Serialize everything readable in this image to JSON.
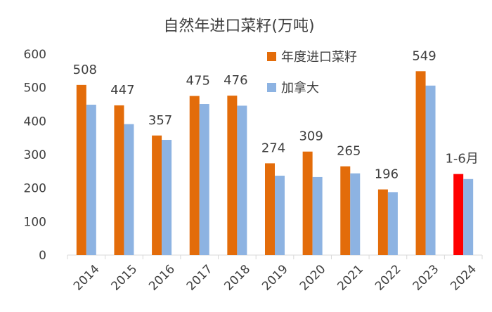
{
  "chart_data": {
    "type": "bar",
    "title": "自然年进口菜籽(万吨)",
    "categories": [
      "2014",
      "2015",
      "2016",
      "2017",
      "2018",
      "2019",
      "2020",
      "2021",
      "2022",
      "2023",
      "2024"
    ],
    "series": [
      {
        "name": "年度进口菜籽",
        "color": "#E36C0A",
        "values": [
          508,
          447,
          357,
          475,
          476,
          274,
          309,
          265,
          196,
          549,
          242
        ],
        "data_labels": [
          "508",
          "447",
          "357",
          "475",
          "476",
          "274",
          "309",
          "265",
          "196",
          "549",
          "1-6月"
        ],
        "highlight": {
          "index": 10,
          "color": "#FF0000"
        }
      },
      {
        "name": "加拿大",
        "color": "#8DB3E2",
        "values": [
          449,
          391,
          344,
          451,
          446,
          237,
          233,
          244,
          188,
          506,
          227
        ]
      }
    ],
    "yticks": [
      "0",
      "100",
      "200",
      "300",
      "400",
      "500",
      "600"
    ],
    "ylim": [
      0,
      600
    ],
    "xlabel": "",
    "ylabel": "",
    "grid": false,
    "legend_position": "top-right"
  }
}
